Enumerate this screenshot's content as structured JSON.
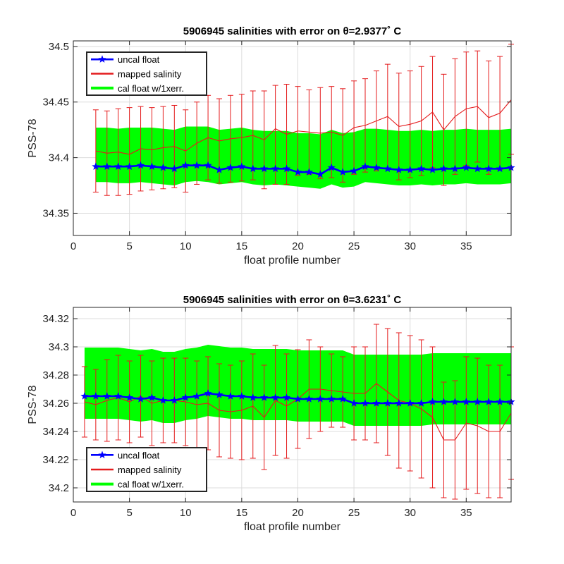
{
  "chart_data": [
    {
      "type": "line",
      "title": "5906945 salinities with error on θ=2.9377˚ C",
      "xlabel": "float profile number",
      "ylabel": "PSS-78",
      "xlim": [
        0,
        39
      ],
      "ylim": [
        34.33,
        34.505
      ],
      "xticks": [
        0,
        5,
        10,
        15,
        20,
        25,
        30,
        35
      ],
      "yticks": [
        34.35,
        34.4,
        34.45,
        34.5
      ],
      "ytick_labels": [
        "34.35",
        "34.4",
        "34.45",
        "34.5"
      ],
      "grid": true,
      "legend_position": "top-left",
      "legend": [
        "uncal float",
        "mapped salinity",
        "cal float w/1xerr."
      ],
      "colors": {
        "uncal": "#0000ff",
        "mapped": "#e41a1c",
        "cal": "#00ff00"
      },
      "x": [
        2,
        3,
        4,
        5,
        6,
        7,
        8,
        9,
        10,
        11,
        12,
        13,
        14,
        15,
        16,
        17,
        18,
        19,
        20,
        21,
        22,
        23,
        24,
        25,
        26,
        27,
        28,
        29,
        30,
        31,
        32,
        33,
        34,
        35,
        36,
        37,
        38,
        39
      ],
      "series": [
        {
          "name": "uncal float",
          "values": [
            34.392,
            34.392,
            34.392,
            34.392,
            34.393,
            34.392,
            34.391,
            34.39,
            34.393,
            34.393,
            34.393,
            34.389,
            34.391,
            34.392,
            34.39,
            34.39,
            34.39,
            34.39,
            34.387,
            34.387,
            34.385,
            34.391,
            34.387,
            34.388,
            34.392,
            34.391,
            34.39,
            34.389,
            34.389,
            34.39,
            34.389,
            34.39,
            34.39,
            34.391,
            34.39,
            34.39,
            34.39,
            34.391
          ]
        },
        {
          "name": "mapped salinity",
          "values": [
            34.406,
            34.404,
            34.405,
            34.403,
            34.408,
            34.407,
            34.409,
            34.41,
            34.406,
            34.413,
            34.418,
            34.415,
            34.417,
            34.418,
            34.42,
            34.416,
            34.426,
            34.421,
            34.424,
            34.423,
            34.422,
            34.423,
            34.42,
            34.427,
            34.429,
            34.433,
            34.437,
            34.428,
            34.43,
            34.433,
            34.441,
            34.425,
            34.437,
            34.444,
            34.446,
            34.436,
            34.44,
            34.452
          ],
          "error_low": [
            34.369,
            34.366,
            34.366,
            34.367,
            34.37,
            34.371,
            34.372,
            34.373,
            34.369,
            34.376,
            34.38,
            34.377,
            34.378,
            34.379,
            34.38,
            34.372,
            34.376,
            34.376,
            34.384,
            34.385,
            34.381,
            34.382,
            34.378,
            34.385,
            34.387,
            34.388,
            34.39,
            34.38,
            34.382,
            34.384,
            34.391,
            34.375,
            34.385,
            34.393,
            34.396,
            34.385,
            34.389,
            34.403
          ],
          "error_high": [
            34.443,
            34.442,
            34.444,
            34.445,
            34.446,
            34.445,
            34.446,
            34.447,
            34.443,
            34.45,
            34.456,
            34.453,
            34.456,
            34.457,
            34.46,
            34.46,
            34.465,
            34.466,
            34.464,
            34.461,
            34.463,
            34.464,
            34.462,
            34.469,
            34.471,
            34.478,
            34.484,
            34.476,
            34.478,
            34.482,
            34.491,
            34.475,
            34.489,
            34.495,
            34.496,
            34.487,
            34.491,
            34.502
          ]
        },
        {
          "name": "cal float w/1xerr.",
          "upper": [
            34.427,
            34.427,
            34.426,
            34.427,
            34.427,
            34.427,
            34.426,
            34.425,
            34.428,
            34.428,
            34.428,
            34.425,
            34.426,
            34.427,
            34.425,
            34.424,
            34.424,
            34.424,
            34.422,
            34.422,
            34.421,
            34.425,
            34.422,
            34.423,
            34.426,
            34.426,
            34.425,
            34.424,
            34.424,
            34.425,
            34.424,
            34.425,
            34.425,
            34.426,
            34.425,
            34.425,
            34.425,
            34.426
          ],
          "lower": [
            34.378,
            34.378,
            34.377,
            34.377,
            34.378,
            34.377,
            34.376,
            34.375,
            34.378,
            34.379,
            34.378,
            34.376,
            34.377,
            34.378,
            34.376,
            34.375,
            34.376,
            34.375,
            34.374,
            34.373,
            34.372,
            34.376,
            34.373,
            34.374,
            34.378,
            34.377,
            34.376,
            34.375,
            34.375,
            34.376,
            34.375,
            34.376,
            34.376,
            34.377,
            34.376,
            34.376,
            34.376,
            34.377
          ]
        }
      ]
    },
    {
      "type": "line",
      "title": "5906945 salinities with error on θ=3.6231˚ C",
      "xlabel": "float profile number",
      "ylabel": "PSS-78",
      "xlim": [
        0,
        39
      ],
      "ylim": [
        34.19,
        34.328
      ],
      "xticks": [
        0,
        5,
        10,
        15,
        20,
        25,
        30,
        35
      ],
      "yticks": [
        34.2,
        34.22,
        34.24,
        34.26,
        34.28,
        34.3,
        34.32
      ],
      "ytick_labels": [
        "34.2",
        "34.22",
        "34.24",
        "34.26",
        "34.28",
        "34.3",
        "34.32"
      ],
      "grid": true,
      "legend_position": "bottom-left",
      "legend": [
        "uncal float",
        "mapped salinity",
        "cal float w/1xerr."
      ],
      "colors": {
        "uncal": "#0000ff",
        "mapped": "#e41a1c",
        "cal": "#00ff00"
      },
      "x": [
        1,
        2,
        3,
        4,
        5,
        6,
        7,
        8,
        9,
        10,
        11,
        12,
        13,
        14,
        15,
        16,
        17,
        18,
        19,
        20,
        21,
        22,
        23,
        24,
        25,
        26,
        27,
        28,
        29,
        30,
        31,
        32,
        33,
        34,
        35,
        36,
        37,
        38,
        39
      ],
      "series": [
        {
          "name": "uncal float",
          "values": [
            34.265,
            34.265,
            34.265,
            34.265,
            34.264,
            34.263,
            34.264,
            34.262,
            34.262,
            34.264,
            34.265,
            34.267,
            34.266,
            34.265,
            34.265,
            34.264,
            34.264,
            34.264,
            34.264,
            34.263,
            34.263,
            34.263,
            34.263,
            34.263,
            34.26,
            34.26,
            34.26,
            34.26,
            34.26,
            34.26,
            34.26,
            34.261,
            34.261,
            34.261,
            34.261,
            34.261,
            34.261,
            34.261,
            34.261
          ]
        },
        {
          "name": "mapped salinity",
          "values": [
            34.261,
            34.259,
            34.262,
            34.264,
            34.261,
            34.265,
            34.26,
            34.262,
            34.262,
            34.261,
            34.259,
            34.26,
            34.255,
            34.254,
            34.255,
            34.258,
            34.25,
            34.262,
            34.258,
            34.263,
            34.27,
            34.27,
            34.269,
            34.268,
            34.267,
            34.267,
            34.274,
            34.268,
            34.262,
            34.26,
            34.256,
            34.25,
            34.234,
            34.234,
            34.246,
            34.244,
            34.24,
            34.24,
            34.253
          ],
          "error_low": [
            34.236,
            34.234,
            34.233,
            34.234,
            34.232,
            34.236,
            34.23,
            34.232,
            34.232,
            34.23,
            34.228,
            34.227,
            34.222,
            34.221,
            34.22,
            34.221,
            34.213,
            34.223,
            34.221,
            34.228,
            34.235,
            34.24,
            34.243,
            34.243,
            34.234,
            34.234,
            34.232,
            34.223,
            34.214,
            34.212,
            34.207,
            34.2,
            34.193,
            34.192,
            34.199,
            34.196,
            34.193,
            34.193,
            34.206
          ]
        }
      ]
    }
  ]
}
